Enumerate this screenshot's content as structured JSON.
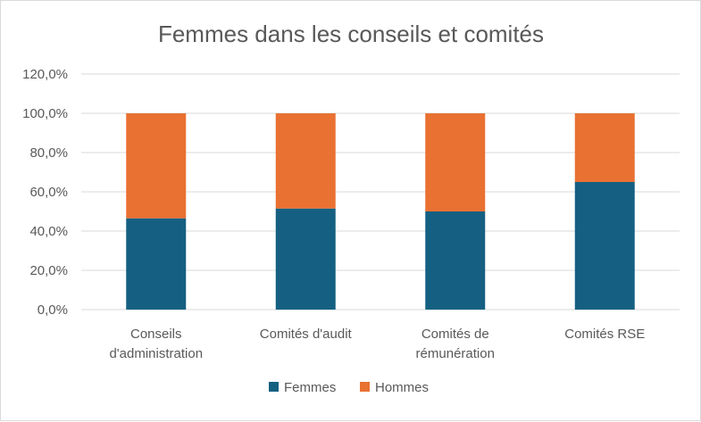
{
  "chart_data": {
    "type": "bar",
    "stacked": true,
    "title": "Femmes dans les conseils et comités",
    "categories": [
      [
        "Conseils",
        "d'administration"
      ],
      [
        "Comités d'audit"
      ],
      [
        "Comités de",
        "rémunération"
      ],
      [
        "Comités RSE"
      ]
    ],
    "series": [
      {
        "name": "Femmes",
        "color": "#156082",
        "values": [
          46.5,
          51.5,
          50.0,
          65.0
        ]
      },
      {
        "name": "Hommes",
        "color": "#E97132",
        "values": [
          53.5,
          48.5,
          50.0,
          35.0
        ]
      }
    ],
    "ylim": [
      0,
      120
    ],
    "yticks": [
      "0,0%",
      "20,0%",
      "40,0%",
      "60,0%",
      "80,0%",
      "100,0%",
      "120,0%"
    ],
    "grid": true,
    "legend_position": "bottom"
  }
}
